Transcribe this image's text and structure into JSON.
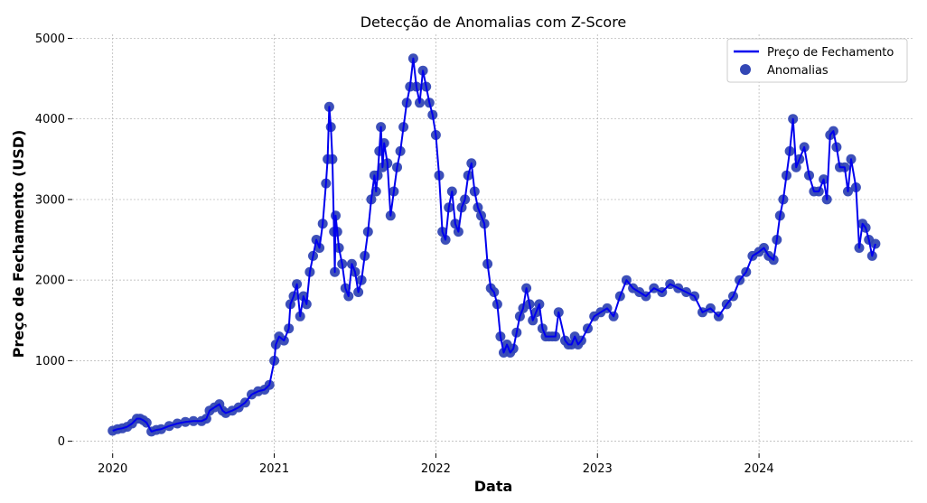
{
  "chart_data": {
    "type": "line",
    "title": "Detecção de Anomalias com Z-Score",
    "xlabel": "Data",
    "ylabel": "Preço de Fechamento (USD)",
    "xlim": [
      2019.75,
      2024.95
    ],
    "ylim": [
      -150,
      5050
    ],
    "x_ticks": [
      2020,
      2021,
      2022,
      2023,
      2024
    ],
    "x_tick_labels": [
      "2020",
      "2021",
      "2022",
      "2023",
      "2024"
    ],
    "y_ticks": [
      0,
      1000,
      2000,
      3000,
      4000,
      5000
    ],
    "y_tick_labels": [
      "0",
      "1000",
      "2000",
      "3000",
      "4000",
      "5000"
    ],
    "grid": true,
    "legend": {
      "position": "top-right",
      "entries": [
        "Preço de Fechamento",
        "Anomalias"
      ]
    },
    "colors": {
      "line": "#0000ee",
      "markers": "#3347b5",
      "grid": "#b0b0b0"
    },
    "series": [
      {
        "name": "Preço de Fechamento",
        "style": "line",
        "x": [
          2020.0,
          2020.03,
          2020.06,
          2020.09,
          2020.12,
          2020.15,
          2020.17,
          2020.19,
          2020.21,
          2020.24,
          2020.27,
          2020.3,
          2020.35,
          2020.4,
          2020.45,
          2020.5,
          2020.55,
          2020.58,
          2020.6,
          2020.63,
          2020.66,
          2020.68,
          2020.7,
          2020.74,
          2020.78,
          2020.82,
          2020.86,
          2020.9,
          2020.94,
          2020.97,
          2021.0,
          2021.01,
          2021.03,
          2021.06,
          2021.09,
          2021.1,
          2021.12,
          2021.14,
          2021.16,
          2021.18,
          2021.2,
          2021.22,
          2021.24,
          2021.26,
          2021.28,
          2021.3,
          2021.32,
          2021.33,
          2021.34,
          2021.35,
          2021.36,
          2021.37,
          2021.375,
          2021.38,
          2021.39,
          2021.4,
          2021.42,
          2021.44,
          2021.46,
          2021.48,
          2021.5,
          2021.52,
          2021.54,
          2021.56,
          2021.58,
          2021.6,
          2021.62,
          2021.63,
          2021.64,
          2021.65,
          2021.66,
          2021.67,
          2021.68,
          2021.7,
          2021.72,
          2021.74,
          2021.76,
          2021.78,
          2021.8,
          2021.82,
          2021.84,
          2021.86,
          2021.88,
          2021.9,
          2021.92,
          2021.94,
          2021.96,
          2021.98,
          2022.0,
          2022.02,
          2022.04,
          2022.06,
          2022.08,
          2022.1,
          2022.12,
          2022.14,
          2022.16,
          2022.18,
          2022.2,
          2022.22,
          2022.24,
          2022.26,
          2022.28,
          2022.3,
          2022.32,
          2022.34,
          2022.36,
          2022.38,
          2022.4,
          2022.42,
          2022.44,
          2022.46,
          2022.48,
          2022.5,
          2022.52,
          2022.54,
          2022.56,
          2022.58,
          2022.6,
          2022.62,
          2022.64,
          2022.66,
          2022.68,
          2022.7,
          2022.72,
          2022.74,
          2022.76,
          2022.8,
          2022.82,
          2022.84,
          2022.86,
          2022.88,
          2022.9,
          2022.94,
          2022.98,
          2023.02,
          2023.06,
          2023.1,
          2023.14,
          2023.18,
          2023.22,
          2023.26,
          2023.3,
          2023.35,
          2023.4,
          2023.45,
          2023.5,
          2023.55,
          2023.6,
          2023.65,
          2023.7,
          2023.75,
          2023.8,
          2023.84,
          2023.88,
          2023.92,
          2023.96,
          2024.0,
          2024.03,
          2024.06,
          2024.09,
          2024.11,
          2024.13,
          2024.15,
          2024.17,
          2024.19,
          2024.21,
          2024.23,
          2024.25,
          2024.28,
          2024.31,
          2024.34,
          2024.37,
          2024.4,
          2024.42,
          2024.44,
          2024.46,
          2024.48,
          2024.5,
          2024.53,
          2024.55,
          2024.57,
          2024.6,
          2024.62,
          2024.64,
          2024.66,
          2024.68,
          2024.7,
          2024.72
        ],
        "y": [
          130,
          150,
          160,
          180,
          220,
          280,
          280,
          260,
          230,
          120,
          140,
          150,
          190,
          220,
          240,
          250,
          250,
          280,
          380,
          420,
          460,
          380,
          350,
          380,
          420,
          480,
          580,
          620,
          640,
          700,
          1000,
          1200,
          1300,
          1250,
          1400,
          1700,
          1800,
          1950,
          1550,
          1800,
          1700,
          2100,
          2300,
          2500,
          2400,
          2700,
          3200,
          3500,
          4150,
          3900,
          3500,
          2600,
          2100,
          2800,
          2600,
          2400,
          2200,
          1900,
          1800,
          2200,
          2100,
          1850,
          2000,
          2300,
          2600,
          3000,
          3300,
          3100,
          3300,
          3600,
          3900,
          3400,
          3700,
          3450,
          2800,
          3100,
          3400,
          3600,
          3900,
          4200,
          4400,
          4750,
          4400,
          4200,
          4600,
          4400,
          4200,
          4050,
          3800,
          3300,
          2600,
          2500,
          2900,
          3100,
          2700,
          2600,
          2900,
          3000,
          3300,
          3450,
          3100,
          2900,
          2800,
          2700,
          2200,
          1900,
          1850,
          1700,
          1300,
          1100,
          1200,
          1100,
          1150,
          1350,
          1550,
          1650,
          1900,
          1700,
          1500,
          1600,
          1700,
          1400,
          1300,
          1300,
          1300,
          1300,
          1600,
          1250,
          1200,
          1200,
          1300,
          1200,
          1250,
          1400,
          1550,
          1600,
          1650,
          1550,
          1800,
          2000,
          1900,
          1850,
          1800,
          1900,
          1850,
          1950,
          1900,
          1850,
          1800,
          1600,
          1650,
          1550,
          1700,
          1800,
          2000,
          2100,
          2300,
          2350,
          2400,
          2300,
          2250,
          2500,
          2800,
          3000,
          3300,
          3600,
          4000,
          3400,
          3500,
          3650,
          3300,
          3100,
          3100,
          3250,
          3000,
          3800,
          3850,
          3650,
          3400,
          3400,
          3100,
          3500,
          3150,
          2400,
          2700,
          2650,
          2500,
          2300,
          2450
        ]
      },
      {
        "name": "Anomalias",
        "style": "markers",
        "x": [
          2020.0,
          2020.03,
          2020.06,
          2020.09,
          2020.12,
          2020.15,
          2020.17,
          2020.19,
          2020.21,
          2020.24,
          2020.27,
          2020.3,
          2020.35,
          2020.4,
          2020.45,
          2020.5,
          2020.55,
          2020.58,
          2020.6,
          2020.63,
          2020.66,
          2020.68,
          2020.7,
          2020.74,
          2020.78,
          2020.82,
          2020.86,
          2020.9,
          2020.94,
          2020.97,
          2021.0,
          2021.01,
          2021.03,
          2021.06,
          2021.09,
          2021.1,
          2021.12,
          2021.14,
          2021.16,
          2021.18,
          2021.2,
          2021.22,
          2021.24,
          2021.26,
          2021.28,
          2021.3,
          2021.32,
          2021.33,
          2021.34,
          2021.35,
          2021.36,
          2021.37,
          2021.375,
          2021.38,
          2021.39,
          2021.4,
          2021.42,
          2021.44,
          2021.46,
          2021.48,
          2021.5,
          2021.52,
          2021.54,
          2021.56,
          2021.58,
          2021.6,
          2021.62,
          2021.63,
          2021.64,
          2021.65,
          2021.66,
          2021.67,
          2021.68,
          2021.7,
          2021.72,
          2021.74,
          2021.76,
          2021.78,
          2021.8,
          2021.82,
          2021.84,
          2021.86,
          2021.88,
          2021.9,
          2021.92,
          2021.94,
          2021.96,
          2021.98,
          2022.0,
          2022.02,
          2022.04,
          2022.06,
          2022.08,
          2022.1,
          2022.12,
          2022.14,
          2022.16,
          2022.18,
          2022.2,
          2022.22,
          2022.24,
          2022.26,
          2022.28,
          2022.3,
          2022.32,
          2022.34,
          2022.36,
          2022.38,
          2022.4,
          2022.42,
          2022.44,
          2022.46,
          2022.48,
          2022.5,
          2022.52,
          2022.54,
          2022.56,
          2022.58,
          2022.6,
          2022.62,
          2022.64,
          2022.66,
          2022.68,
          2022.7,
          2022.72,
          2022.74,
          2022.76,
          2022.8,
          2022.82,
          2022.84,
          2022.86,
          2022.88,
          2022.9,
          2022.94,
          2022.98,
          2023.02,
          2023.06,
          2023.1,
          2023.14,
          2023.18,
          2023.22,
          2023.26,
          2023.3,
          2023.35,
          2023.4,
          2023.45,
          2023.5,
          2023.55,
          2023.6,
          2023.65,
          2023.7,
          2023.75,
          2023.8,
          2023.84,
          2023.88,
          2023.92,
          2023.96,
          2024.0,
          2024.03,
          2024.06,
          2024.09,
          2024.11,
          2024.13,
          2024.15,
          2024.17,
          2024.19,
          2024.21,
          2024.23,
          2024.25,
          2024.28,
          2024.31,
          2024.34,
          2024.37,
          2024.4,
          2024.42,
          2024.44,
          2024.46,
          2024.48,
          2024.5,
          2024.53,
          2024.55,
          2024.57,
          2024.6,
          2024.62,
          2024.64,
          2024.66,
          2024.68,
          2024.7,
          2024.72
        ],
        "y": [
          130,
          150,
          160,
          180,
          220,
          280,
          280,
          260,
          230,
          120,
          140,
          150,
          190,
          220,
          240,
          250,
          250,
          280,
          380,
          420,
          460,
          380,
          350,
          380,
          420,
          480,
          580,
          620,
          640,
          700,
          1000,
          1200,
          1300,
          1250,
          1400,
          1700,
          1800,
          1950,
          1550,
          1800,
          1700,
          2100,
          2300,
          2500,
          2400,
          2700,
          3200,
          3500,
          4150,
          3900,
          3500,
          2600,
          2100,
          2800,
          2600,
          2400,
          2200,
          1900,
          1800,
          2200,
          2100,
          1850,
          2000,
          2300,
          2600,
          3000,
          3300,
          3100,
          3300,
          3600,
          3900,
          3400,
          3700,
          3450,
          2800,
          3100,
          3400,
          3600,
          3900,
          4200,
          4400,
          4750,
          4400,
          4200,
          4600,
          4400,
          4200,
          4050,
          3800,
          3300,
          2600,
          2500,
          2900,
          3100,
          2700,
          2600,
          2900,
          3000,
          3300,
          3450,
          3100,
          2900,
          2800,
          2700,
          2200,
          1900,
          1850,
          1700,
          1300,
          1100,
          1200,
          1100,
          1150,
          1350,
          1550,
          1650,
          1900,
          1700,
          1500,
          1600,
          1700,
          1400,
          1300,
          1300,
          1300,
          1300,
          1600,
          1250,
          1200,
          1200,
          1300,
          1200,
          1250,
          1400,
          1550,
          1600,
          1650,
          1550,
          1800,
          2000,
          1900,
          1850,
          1800,
          1900,
          1850,
          1950,
          1900,
          1850,
          1800,
          1600,
          1650,
          1550,
          1700,
          1800,
          2000,
          2100,
          2300,
          2350,
          2400,
          2300,
          2250,
          2500,
          2800,
          3000,
          3300,
          3600,
          4000,
          3400,
          3500,
          3650,
          3300,
          3100,
          3100,
          3250,
          3000,
          3800,
          3850,
          3650,
          3400,
          3400,
          3100,
          3500,
          3150,
          2400,
          2700,
          2650,
          2500,
          2300,
          2450
        ]
      }
    ]
  }
}
